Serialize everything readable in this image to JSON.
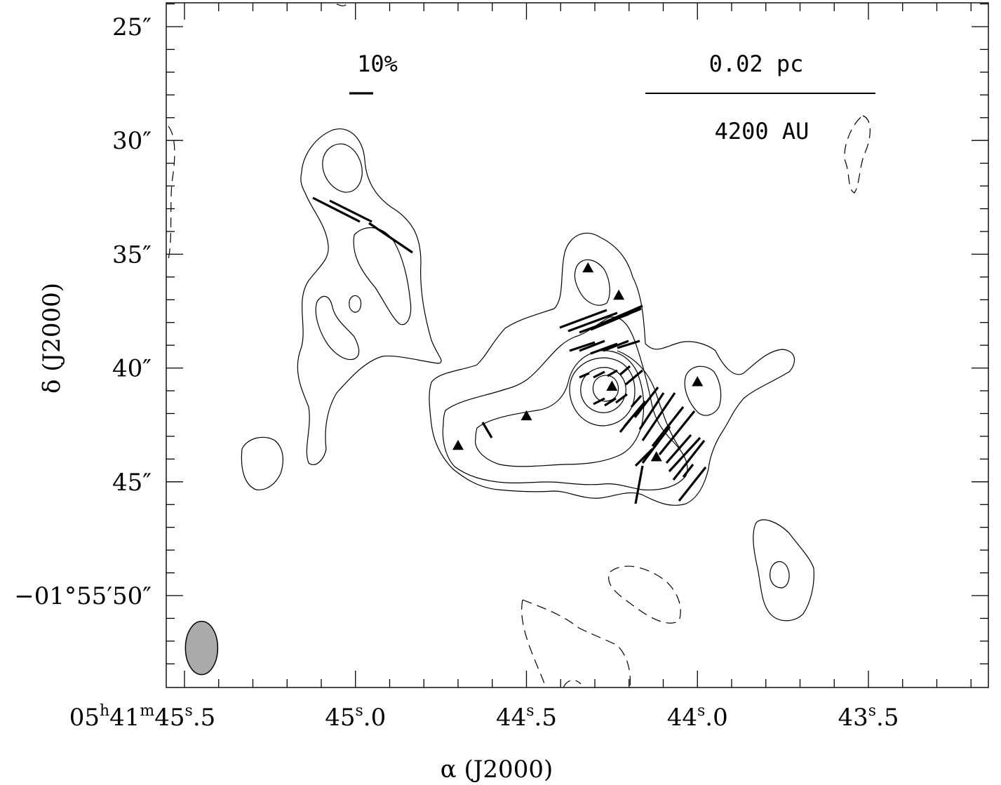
{
  "chart_data": {
    "type": "contour map with polarization vectors",
    "xlabel": "α (J2000)",
    "ylabel": "δ (J2000)",
    "x_ticks": [
      {
        "h": "05",
        "m": "41",
        "s": "45",
        "f": "5",
        "value": 45.5,
        "prefix": true
      },
      {
        "s": "45",
        "f": "0",
        "value": 45.0
      },
      {
        "s": "44",
        "f": "5",
        "value": 44.5
      },
      {
        "s": "44",
        "f": "0",
        "value": 44.0
      },
      {
        "s": "43",
        "f": "5",
        "value": 43.5
      }
    ],
    "y_ticks": [
      {
        "label": "25″",
        "value": 25
      },
      {
        "label": "30″",
        "value": 30
      },
      {
        "label": "35″",
        "value": 35
      },
      {
        "label": "40″",
        "value": 40
      },
      {
        "label": "45″",
        "value": 45
      },
      {
        "label": "−01°55′50″",
        "value": 50
      }
    ],
    "xlim_sec": [
      45.55,
      43.25
    ],
    "ylim_arcsec": [
      23.9,
      53.9
    ],
    "annotations": {
      "polarization_scale": "10%",
      "linear_scale": "0.02 pc",
      "au_scale": "4200 AU"
    },
    "sources_triangles": [
      {
        "ra": 44.32,
        "dec": 35.6
      },
      {
        "ra": 44.23,
        "dec": 36.8
      },
      {
        "ra": 44.25,
        "dec": 40.8
      },
      {
        "ra": 44.0,
        "dec": 40.6
      },
      {
        "ra": 44.5,
        "dec": 42.1
      },
      {
        "ra": 44.7,
        "dec": 43.4
      },
      {
        "ra": 44.12,
        "dec": 43.9
      }
    ],
    "beam": {
      "ra": 45.45,
      "dec": 52.3,
      "major_arcsec": 2.4,
      "minor_arcsec": 1.45,
      "color": "#aaaaaa"
    }
  }
}
